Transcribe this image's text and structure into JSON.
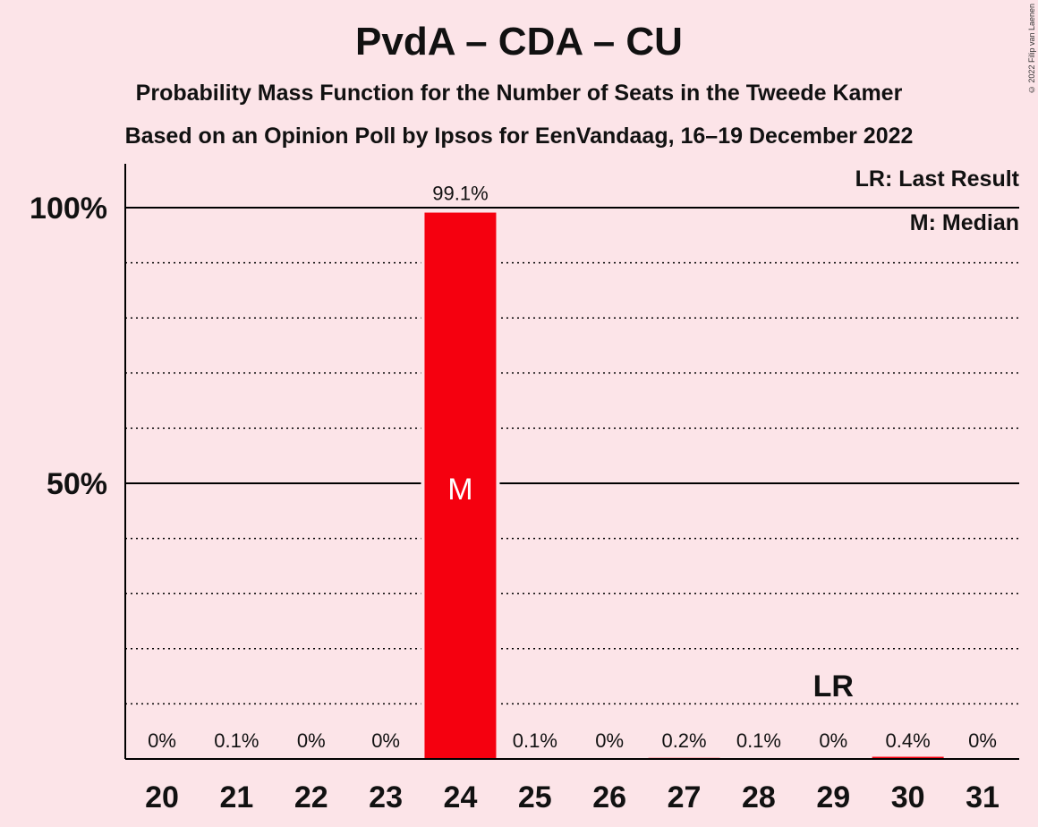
{
  "title": "PvdA – CDA – CU",
  "subtitle_1": "Probability Mass Function for the Number of Seats in the Tweede Kamer",
  "subtitle_2": "Based on an Opinion Poll by Ipsos for EenVandaag, 16–19 December 2022",
  "copyright": "© 2022 Filip van Laenen",
  "legend": {
    "last_result": "LR: Last Result",
    "median": "M: Median"
  },
  "colors": {
    "background": "#fce4e8",
    "bar": "#f5000f",
    "axis": "#000000"
  },
  "chart_data": {
    "type": "bar",
    "categories": [
      "20",
      "21",
      "22",
      "23",
      "24",
      "25",
      "26",
      "27",
      "28",
      "29",
      "30",
      "31"
    ],
    "values": [
      0,
      0.1,
      0,
      0,
      99.1,
      0.1,
      0,
      0.2,
      0.1,
      0,
      0.4,
      0
    ],
    "value_labels": [
      "0%",
      "0.1%",
      "0%",
      "0%",
      "99.1%",
      "0.1%",
      "0%",
      "0.2%",
      "0.1%",
      "0%",
      "0.4%",
      "0%"
    ],
    "ylim": [
      0,
      108
    ],
    "yticks": [
      {
        "value": 50,
        "label": "50%"
      },
      {
        "value": 100,
        "label": "100%"
      }
    ],
    "minor_gridlines": [
      10,
      20,
      30,
      40,
      60,
      70,
      80,
      90
    ],
    "median_seat": "24",
    "median_marker": "M",
    "last_result_seat": "29",
    "last_result_marker": "LR",
    "legend_position": "top-right"
  }
}
